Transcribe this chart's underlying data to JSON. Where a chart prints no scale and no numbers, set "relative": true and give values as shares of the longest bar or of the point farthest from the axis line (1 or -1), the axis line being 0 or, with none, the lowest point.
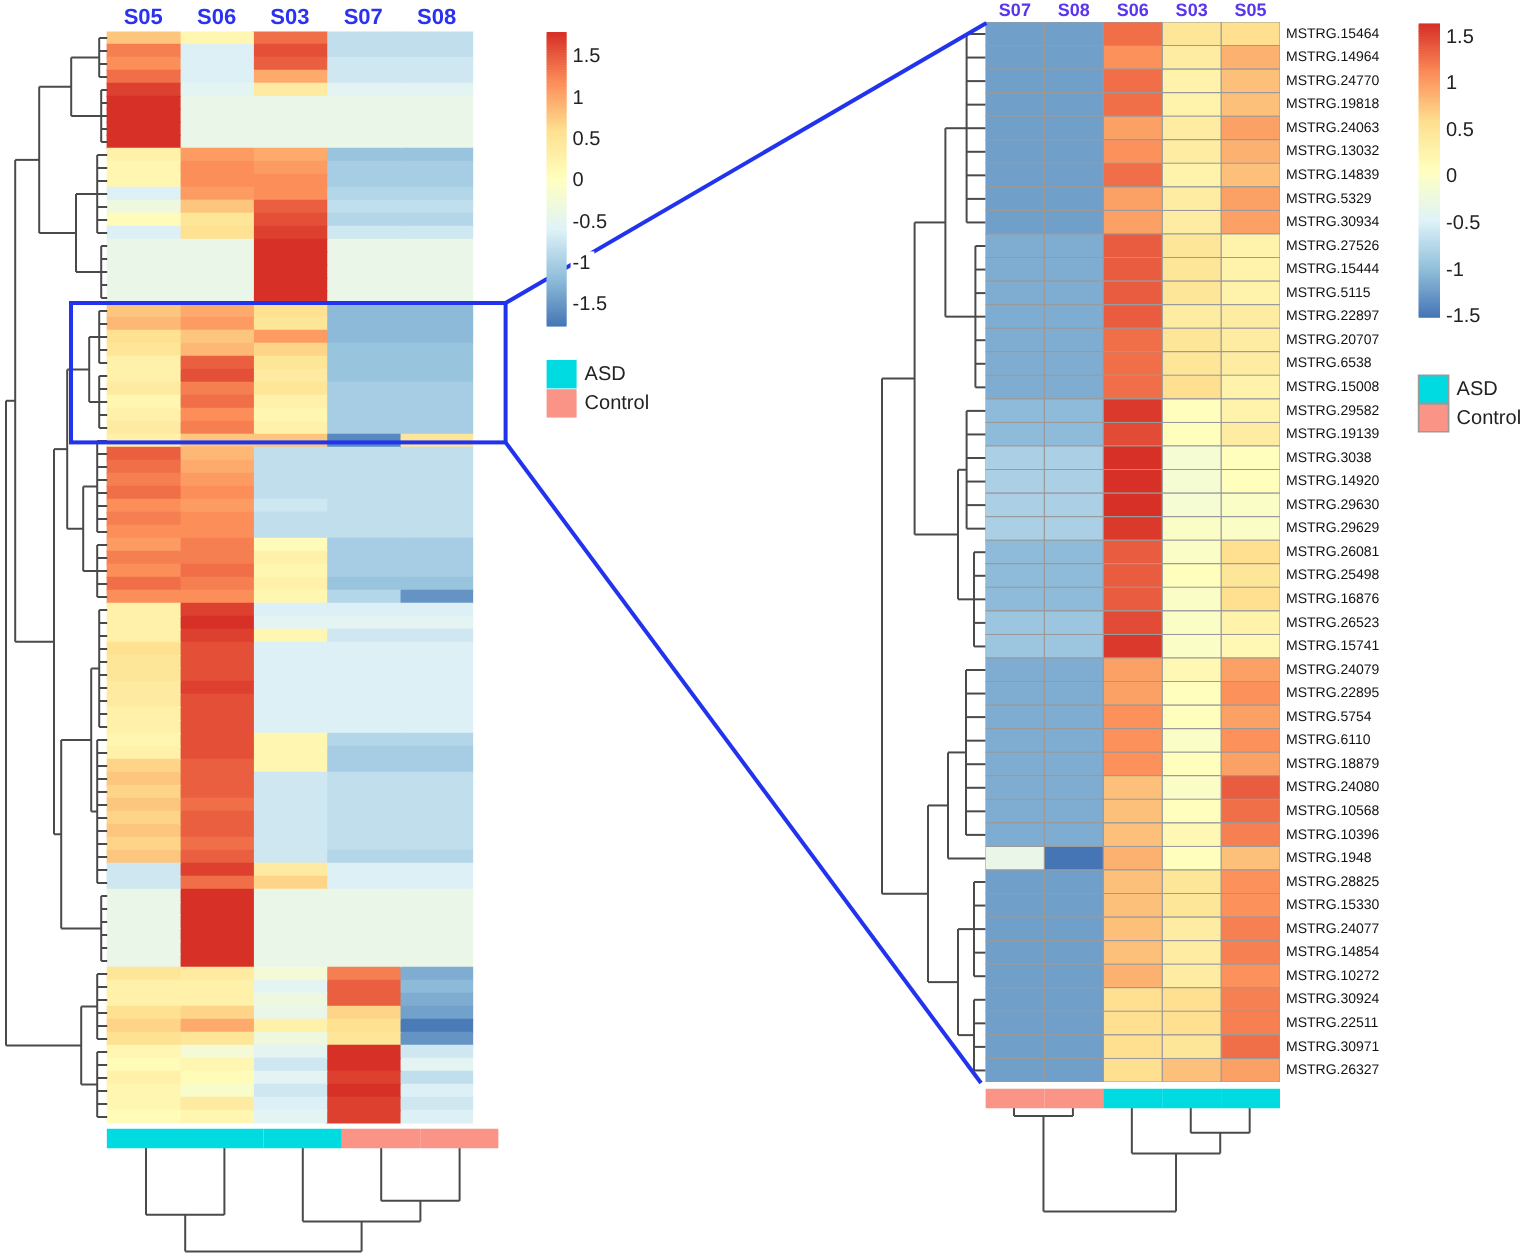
{
  "chart_data": [
    {
      "type": "heatmap",
      "categories": [
        "S05",
        "S06",
        "S03",
        "S07",
        "S08"
      ],
      "y_categories": [
        null,
        null,
        null,
        null,
        null,
        null,
        null,
        null,
        null,
        null,
        null,
        null,
        null,
        null,
        null,
        null,
        null,
        null,
        null,
        null,
        null,
        null,
        null,
        null,
        null,
        null,
        null,
        null,
        null,
        null,
        null,
        null,
        null,
        null,
        null,
        null,
        null,
        null,
        null,
        null,
        null,
        null,
        null,
        null,
        null,
        null,
        null,
        null,
        null,
        null,
        null,
        null,
        null,
        null,
        null,
        null,
        null,
        null,
        null,
        null,
        null,
        null,
        null,
        null,
        null,
        null,
        null,
        null,
        null,
        null,
        null,
        null,
        null,
        null,
        null,
        null,
        null,
        null,
        null,
        null,
        null,
        null,
        null,
        null
      ],
      "cells": [
        [
          0.8,
          0.2,
          1.4,
          -0.8,
          -0.8
        ],
        [
          1.3,
          -0.6,
          1.6,
          -0.8,
          -0.8
        ],
        [
          1.2,
          -0.6,
          1.5,
          -0.7,
          -0.7
        ],
        [
          1.4,
          -0.6,
          1.0,
          -0.7,
          -0.7
        ],
        [
          1.7,
          -0.5,
          0.4,
          -0.5,
          -0.5
        ],
        [
          1.8,
          -0.4,
          -0.4,
          -0.4,
          -0.4
        ],
        [
          1.8,
          -0.4,
          -0.4,
          -0.4,
          -0.4
        ],
        [
          1.8,
          -0.4,
          -0.4,
          -0.4,
          -0.4
        ],
        [
          1.8,
          -0.4,
          -0.4,
          -0.4,
          -0.4
        ],
        [
          0.3,
          1.1,
          1.0,
          -1.1,
          -1.1
        ],
        [
          0.2,
          1.2,
          1.1,
          -1.0,
          -1.0
        ],
        [
          0.2,
          1.2,
          1.2,
          -1.0,
          -1.0
        ],
        [
          -0.6,
          1.1,
          1.2,
          -0.9,
          -0.9
        ],
        [
          -0.3,
          0.8,
          1.5,
          -0.8,
          -0.8
        ],
        [
          0.1,
          0.5,
          1.6,
          -0.9,
          -0.9
        ],
        [
          -0.6,
          0.6,
          1.7,
          -0.7,
          -0.7
        ],
        [
          -0.4,
          -0.4,
          1.8,
          -0.4,
          -0.4
        ],
        [
          -0.4,
          -0.4,
          1.8,
          -0.4,
          -0.4
        ],
        [
          -0.4,
          -0.4,
          1.8,
          -0.4,
          -0.4
        ],
        [
          -0.4,
          -0.4,
          1.8,
          -0.4,
          -0.4
        ],
        [
          -0.4,
          -0.4,
          1.8,
          -0.4,
          -0.4
        ],
        [
          0.8,
          1.0,
          0.6,
          -1.2,
          -1.2
        ],
        [
          0.9,
          1.1,
          0.5,
          -1.2,
          -1.2
        ],
        [
          0.6,
          0.8,
          1.1,
          -1.2,
          -1.2
        ],
        [
          0.5,
          0.9,
          0.7,
          -1.1,
          -1.1
        ],
        [
          0.3,
          1.5,
          0.5,
          -1.1,
          -1.1
        ],
        [
          0.3,
          1.6,
          0.4,
          -1.1,
          -1.1
        ],
        [
          0.4,
          1.3,
          0.5,
          -1.0,
          -1.0
        ],
        [
          0.2,
          1.4,
          0.3,
          -1.0,
          -1.0
        ],
        [
          0.3,
          1.2,
          0.2,
          -1.0,
          -1.0
        ],
        [
          0.4,
          1.3,
          0.3,
          -1.0,
          -1.0
        ],
        [
          0.3,
          0.8,
          0.8,
          -1.6,
          0.5
        ],
        [
          1.5,
          0.9,
          -0.8,
          -0.8,
          -0.8
        ],
        [
          1.4,
          1.0,
          -0.8,
          -0.8,
          -0.8
        ],
        [
          1.3,
          1.1,
          -0.8,
          -0.8,
          -0.8
        ],
        [
          1.4,
          1.2,
          -0.8,
          -0.8,
          -0.8
        ],
        [
          1.2,
          1.1,
          -0.7,
          -0.8,
          -0.8
        ],
        [
          1.3,
          1.2,
          -0.8,
          -0.8,
          -0.8
        ],
        [
          1.2,
          1.2,
          -0.8,
          -0.8,
          -0.8
        ],
        [
          1.1,
          1.3,
          0.1,
          -1.0,
          -1.0
        ],
        [
          1.3,
          1.3,
          0.3,
          -1.0,
          -1.0
        ],
        [
          1.2,
          1.4,
          0.2,
          -1.0,
          -1.0
        ],
        [
          1.4,
          1.3,
          0.3,
          -1.1,
          -1.1
        ],
        [
          1.2,
          1.2,
          0.2,
          -0.9,
          -1.5
        ],
        [
          0.3,
          1.7,
          -0.6,
          -0.6,
          -0.6
        ],
        [
          0.3,
          1.8,
          -0.5,
          -0.5,
          -0.5
        ],
        [
          0.3,
          1.7,
          0.2,
          -0.7,
          -0.7
        ],
        [
          0.6,
          1.6,
          -0.6,
          -0.6,
          -0.6
        ],
        [
          0.5,
          1.6,
          -0.6,
          -0.6,
          -0.6
        ],
        [
          0.5,
          1.6,
          -0.6,
          -0.6,
          -0.6
        ],
        [
          0.4,
          1.7,
          -0.6,
          -0.6,
          -0.6
        ],
        [
          0.4,
          1.6,
          -0.6,
          -0.6,
          -0.6
        ],
        [
          0.3,
          1.6,
          -0.6,
          -0.6,
          -0.6
        ],
        [
          0.3,
          1.6,
          -0.6,
          -0.6,
          -0.6
        ],
        [
          0.2,
          1.6,
          0.2,
          -0.9,
          -0.9
        ],
        [
          0.3,
          1.6,
          0.2,
          -1.0,
          -1.0
        ],
        [
          0.7,
          1.5,
          0.2,
          -1.0,
          -1.0
        ],
        [
          0.8,
          1.5,
          -0.7,
          -0.8,
          -0.8
        ],
        [
          0.7,
          1.5,
          -0.7,
          -0.8,
          -0.8
        ],
        [
          0.8,
          1.4,
          -0.7,
          -0.8,
          -0.8
        ],
        [
          0.7,
          1.5,
          -0.7,
          -0.8,
          -0.8
        ],
        [
          0.8,
          1.5,
          -0.7,
          -0.8,
          -0.8
        ],
        [
          0.7,
          1.4,
          -0.7,
          -0.8,
          -0.8
        ],
        [
          0.8,
          1.5,
          -0.7,
          -0.9,
          -0.9
        ],
        [
          -0.7,
          1.7,
          0.4,
          -0.6,
          -0.6
        ],
        [
          -0.7,
          1.4,
          0.7,
          -0.6,
          -0.6
        ],
        [
          -0.4,
          1.8,
          -0.4,
          -0.4,
          -0.4
        ],
        [
          -0.4,
          1.8,
          -0.4,
          -0.4,
          -0.4
        ],
        [
          -0.4,
          1.8,
          -0.4,
          -0.4,
          -0.4
        ],
        [
          -0.4,
          1.8,
          -0.4,
          -0.4,
          -0.4
        ],
        [
          -0.4,
          1.8,
          -0.4,
          -0.4,
          -0.4
        ],
        [
          -0.4,
          1.8,
          -0.4,
          -0.4,
          -0.4
        ],
        [
          0.5,
          0.4,
          -0.2,
          1.3,
          -1.3
        ],
        [
          0.3,
          0.3,
          -0.5,
          1.5,
          -1.2
        ],
        [
          0.3,
          0.3,
          -0.3,
          1.5,
          -1.3
        ],
        [
          0.6,
          0.7,
          -0.4,
          0.7,
          -1.4
        ],
        [
          0.7,
          1.0,
          0.3,
          0.6,
          -1.7
        ],
        [
          0.6,
          0.5,
          -0.3,
          0.5,
          -1.5
        ],
        [
          0.2,
          -0.2,
          -0.5,
          1.8,
          -0.7
        ],
        [
          0.1,
          0.2,
          -0.7,
          1.8,
          -0.5
        ],
        [
          0.3,
          0.1,
          -0.5,
          1.7,
          -0.8
        ],
        [
          0.2,
          -0.1,
          -0.7,
          1.8,
          -0.6
        ],
        [
          0.2,
          0.4,
          -0.6,
          1.7,
          -0.7
        ],
        [
          0.1,
          0.2,
          -0.5,
          1.7,
          -0.6
        ]
      ],
      "clim": [
        -1.75,
        1.8
      ],
      "cticks": [
        -1.5,
        -1,
        -0.5,
        0,
        0.5,
        1,
        1.5
      ],
      "colors": [
        "#4575b4",
        "#91bfdb",
        "#e0f3f8",
        "#ffffbf",
        "#fee090",
        "#fc8d59",
        "#d73027"
      ],
      "tick_labels": "x"
    },
    {
      "type": "bar",
      "categories": [
        null,
        null,
        null,
        null,
        null
      ],
      "series": [
        {
          "name": "ASD",
          "color": "#00dbe2",
          "values": [
            1,
            1,
            1,
            0,
            0
          ]
        },
        {
          "name": "Control",
          "color": "#f99487",
          "values": [
            0,
            0,
            0,
            1,
            1
          ]
        }
      ],
      "stacked": true,
      "relative": true,
      "legend": "right",
      "tick_labels": false
    },
    {
      "type": "heatmap",
      "categories": [
        "S07",
        "S08",
        "S06",
        "S03",
        "S05"
      ],
      "y_categories": [
        "MSTRG.15464",
        "MSTRG.14964",
        "MSTRG.24770",
        "MSTRG.19818",
        "MSTRG.24063",
        "MSTRG.13032",
        "MSTRG.14839",
        "MSTRG.5329",
        "MSTRG.30934",
        "MSTRG.27526",
        "MSTRG.15444",
        "MSTRG.5115",
        "MSTRG.22897",
        "MSTRG.20707",
        "MSTRG.6538",
        "MSTRG.15008",
        "MSTRG.29582",
        "MSTRG.19139",
        "MSTRG.3038",
        "MSTRG.14920",
        "MSTRG.29630",
        "MSTRG.29629",
        "MSTRG.26081",
        "MSTRG.25498",
        "MSTRG.16876",
        "MSTRG.26523",
        "MSTRG.15741",
        "MSTRG.24079",
        "MSTRG.22895",
        "MSTRG.5754",
        "MSTRG.6110",
        "MSTRG.18879",
        "MSTRG.24080",
        "MSTRG.10568",
        "MSTRG.10396",
        "MSTRG.1948",
        "MSTRG.28825",
        "MSTRG.15330",
        "MSTRG.24077",
        "MSTRG.14854",
        "MSTRG.10272",
        "MSTRG.30924",
        "MSTRG.22511",
        "MSTRG.30971",
        "MSTRG.26327"
      ],
      "cells": [
        [
          -1.2,
          -1.2,
          1.3,
          0.5,
          0.6
        ],
        [
          -1.2,
          -1.2,
          1.1,
          0.4,
          0.9
        ],
        [
          -1.2,
          -1.2,
          1.3,
          0.3,
          0.8
        ],
        [
          -1.2,
          -1.2,
          1.3,
          0.3,
          0.8
        ],
        [
          -1.2,
          -1.2,
          1.0,
          0.4,
          1.0
        ],
        [
          -1.2,
          -1.2,
          1.1,
          0.4,
          0.9
        ],
        [
          -1.2,
          -1.2,
          1.3,
          0.3,
          0.8
        ],
        [
          -1.2,
          -1.2,
          1.0,
          0.4,
          1.0
        ],
        [
          -1.2,
          -1.2,
          1.0,
          0.4,
          1.0
        ],
        [
          -1.1,
          -1.1,
          1.4,
          0.5,
          0.3
        ],
        [
          -1.1,
          -1.1,
          1.4,
          0.5,
          0.3
        ],
        [
          -1.1,
          -1.1,
          1.4,
          0.5,
          0.3
        ],
        [
          -1.1,
          -1.1,
          1.4,
          0.4,
          0.4
        ],
        [
          -1.1,
          -1.1,
          1.3,
          0.5,
          0.4
        ],
        [
          -1.1,
          -1.1,
          1.3,
          0.5,
          0.4
        ],
        [
          -1.1,
          -1.1,
          1.3,
          0.6,
          0.3
        ],
        [
          -1.0,
          -1.0,
          1.6,
          0.1,
          0.3
        ],
        [
          -1.0,
          -1.0,
          1.5,
          0.1,
          0.4
        ],
        [
          -0.8,
          -0.8,
          1.65,
          -0.1,
          0.1
        ],
        [
          -0.8,
          -0.8,
          1.65,
          -0.1,
          0.1
        ],
        [
          -0.8,
          -0.8,
          1.65,
          -0.1,
          0.0
        ],
        [
          -0.8,
          -0.8,
          1.6,
          0.0,
          0.0
        ],
        [
          -1.0,
          -1.0,
          1.4,
          0.0,
          0.6
        ],
        [
          -1.0,
          -1.0,
          1.4,
          0.1,
          0.5
        ],
        [
          -1.0,
          -1.0,
          1.4,
          0.0,
          0.6
        ],
        [
          -0.9,
          -0.9,
          1.5,
          0.0,
          0.3
        ],
        [
          -0.9,
          -0.9,
          1.6,
          0.0,
          0.2
        ],
        [
          -1.1,
          -1.1,
          1.0,
          0.2,
          1.0
        ],
        [
          -1.1,
          -1.1,
          1.0,
          0.1,
          1.1
        ],
        [
          -1.1,
          -1.1,
          1.1,
          0.1,
          1.0
        ],
        [
          -1.1,
          -1.1,
          1.1,
          0.0,
          1.1
        ],
        [
          -1.1,
          -1.1,
          1.1,
          0.1,
          1.0
        ],
        [
          -1.1,
          -1.1,
          0.8,
          0.0,
          1.4
        ],
        [
          -1.1,
          -1.1,
          0.8,
          0.1,
          1.3
        ],
        [
          -1.1,
          -1.1,
          0.8,
          0.2,
          1.2
        ],
        [
          -0.3,
          -1.5,
          0.9,
          0.1,
          0.8
        ],
        [
          -1.2,
          -1.2,
          0.8,
          0.5,
          1.1
        ],
        [
          -1.2,
          -1.2,
          0.8,
          0.5,
          1.1
        ],
        [
          -1.2,
          -1.2,
          0.8,
          0.4,
          1.2
        ],
        [
          -1.2,
          -1.2,
          0.8,
          0.4,
          1.2
        ],
        [
          -1.2,
          -1.2,
          0.9,
          0.4,
          1.1
        ],
        [
          -1.2,
          -1.2,
          0.6,
          0.6,
          1.2
        ],
        [
          -1.2,
          -1.2,
          0.6,
          0.6,
          1.2
        ],
        [
          -1.2,
          -1.2,
          0.6,
          0.5,
          1.3
        ],
        [
          -1.2,
          -1.2,
          0.6,
          0.8,
          1.0
        ]
      ],
      "clim": [
        -1.5,
        1.65
      ],
      "cticks": [
        -1.5,
        -1,
        -0.5,
        0,
        0.5,
        1,
        1.5
      ],
      "colors": [
        "#4575b4",
        "#91bfdb",
        "#e0f3f8",
        "#ffffbf",
        "#fee090",
        "#fc8d59",
        "#d73027"
      ]
    },
    {
      "type": "bar",
      "categories": [
        null,
        null,
        null,
        null,
        null
      ],
      "series": [
        {
          "name": "ASD",
          "color": "#00dbe2",
          "values": [
            0,
            0,
            1,
            1,
            1
          ]
        },
        {
          "name": "Control",
          "color": "#f99487",
          "values": [
            1,
            1,
            0,
            0,
            0
          ]
        }
      ],
      "stacked": true,
      "relative": true,
      "legend": "right",
      "tick_labels": false
    }
  ]
}
